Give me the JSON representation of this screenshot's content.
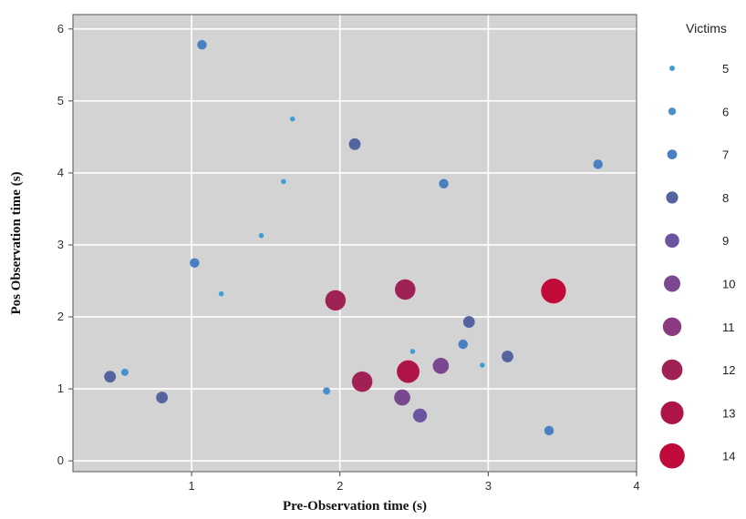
{
  "chart_data": {
    "type": "scatter",
    "title": "",
    "xlabel": "Pre-Observation time (s)",
    "ylabel": "Pos Observation time (s)",
    "xlim": [
      0.2,
      4.0
    ],
    "ylim": [
      -0.15,
      6.2
    ],
    "xticks": [
      1,
      2,
      3,
      4
    ],
    "yticks": [
      0,
      1,
      2,
      3,
      4,
      5,
      6
    ],
    "grid": true,
    "background_color": "#d3d3d3",
    "grid_color": "#ffffff",
    "legend": {
      "title": "Victims",
      "placement": "right",
      "entries": [
        {
          "label": "5",
          "value": 5,
          "color": "#3f9fd1"
        },
        {
          "label": "6",
          "value": 6,
          "color": "#4a8fcb"
        },
        {
          "label": "7",
          "value": 7,
          "color": "#4a7fc0"
        },
        {
          "label": "8",
          "value": 8,
          "color": "#55649f"
        },
        {
          "label": "9",
          "value": 9,
          "color": "#6a55a0"
        },
        {
          "label": "10",
          "value": 10,
          "color": "#7a4791"
        },
        {
          "label": "11",
          "value": 11,
          "color": "#8a3a80"
        },
        {
          "label": "12",
          "value": 12,
          "color": "#a02255"
        },
        {
          "label": "13",
          "value": 13,
          "color": "#ad1448"
        },
        {
          "label": "14",
          "value": 14,
          "color": "#c00a3a"
        }
      ]
    },
    "points": [
      {
        "x": 1.07,
        "y": 5.78,
        "victims": 7
      },
      {
        "x": 1.68,
        "y": 4.75,
        "victims": 5
      },
      {
        "x": 2.1,
        "y": 4.4,
        "victims": 8
      },
      {
        "x": 3.74,
        "y": 4.12,
        "victims": 7
      },
      {
        "x": 1.62,
        "y": 3.88,
        "victims": 5
      },
      {
        "x": 2.7,
        "y": 3.85,
        "victims": 7
      },
      {
        "x": 1.47,
        "y": 3.13,
        "victims": 5
      },
      {
        "x": 1.02,
        "y": 2.75,
        "victims": 7
      },
      {
        "x": 1.2,
        "y": 2.32,
        "victims": 5
      },
      {
        "x": 1.97,
        "y": 2.23,
        "victims": 12
      },
      {
        "x": 2.44,
        "y": 2.38,
        "victims": 12
      },
      {
        "x": 3.44,
        "y": 2.36,
        "victims": 14
      },
      {
        "x": 2.87,
        "y": 1.93,
        "victims": 8
      },
      {
        "x": 2.83,
        "y": 1.62,
        "victims": 7
      },
      {
        "x": 2.49,
        "y": 1.52,
        "victims": 5
      },
      {
        "x": 3.13,
        "y": 1.45,
        "victims": 8
      },
      {
        "x": 2.96,
        "y": 1.33,
        "victims": 5
      },
      {
        "x": 2.68,
        "y": 1.32,
        "victims": 10
      },
      {
        "x": 2.46,
        "y": 1.24,
        "victims": 13
      },
      {
        "x": 0.55,
        "y": 1.23,
        "victims": 6
      },
      {
        "x": 0.45,
        "y": 1.17,
        "victims": 8
      },
      {
        "x": 2.15,
        "y": 1.1,
        "victims": 12
      },
      {
        "x": 1.91,
        "y": 0.97,
        "victims": 6
      },
      {
        "x": 2.42,
        "y": 0.88,
        "victims": 10
      },
      {
        "x": 0.8,
        "y": 0.88,
        "victims": 8
      },
      {
        "x": 2.54,
        "y": 0.63,
        "victims": 9
      },
      {
        "x": 3.41,
        "y": 0.42,
        "victims": 7
      }
    ]
  }
}
